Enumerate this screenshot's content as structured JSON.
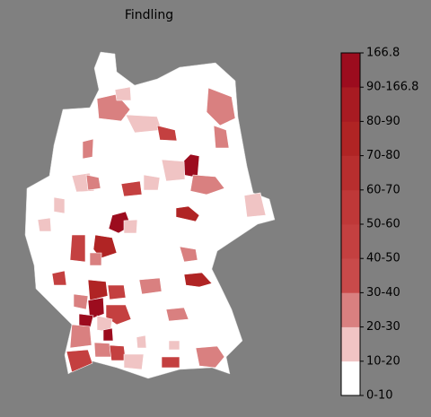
{
  "title": "Findling",
  "colorbar": {
    "labels": [
      "0-10",
      "10-20",
      "20-30",
      "30-40",
      "40-50",
      "50-60",
      "60-70",
      "70-80",
      "80-90",
      "90-166.8",
      "166.8"
    ],
    "colors": [
      "#ffffff",
      "#f0c4c4",
      "#d98080",
      "#c94a4a",
      "#c44040",
      "#bf3838",
      "#b82e2e",
      "#b02424",
      "#a81b22",
      "#9c0c1e"
    ]
  }
}
